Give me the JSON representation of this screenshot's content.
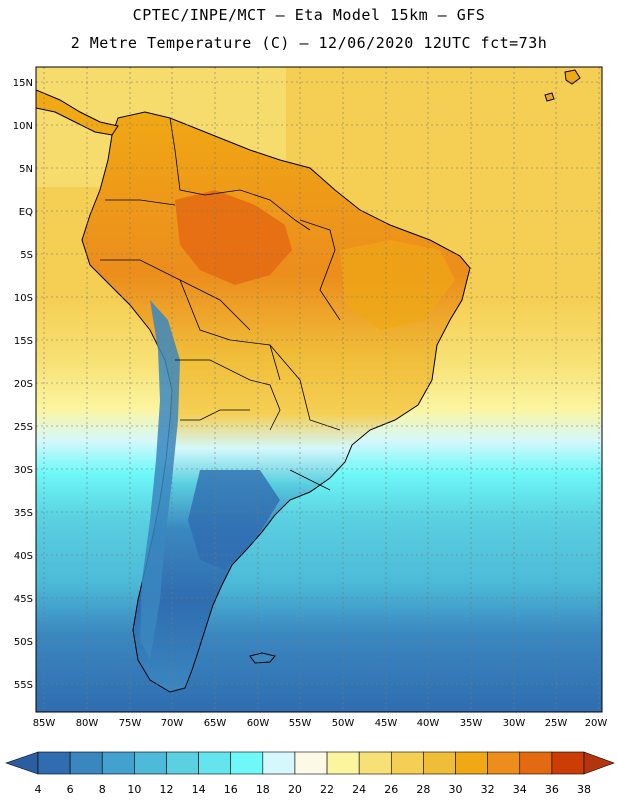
{
  "header": {
    "line1": "CPTEC/INPE/MCT –  Eta Model 15km – GFS",
    "line2": "2 Metre Temperature (C) – 12/06/2020 12UTC fct=73h"
  },
  "map": {
    "lat_labels": [
      "15N",
      "10N",
      "5N",
      "EQ",
      "5S",
      "10S",
      "15S",
      "20S",
      "25S",
      "30S",
      "35S",
      "40S",
      "45S",
      "50S",
      "55S"
    ],
    "lon_labels": [
      "85W",
      "80W",
      "75W",
      "70W",
      "65W",
      "60W",
      "55W",
      "50W",
      "45W",
      "40W",
      "35W",
      "30W",
      "25W",
      "20W"
    ],
    "lat_range": [
      15,
      -57
    ],
    "lon_range": [
      -85,
      -20
    ]
  },
  "colorbar": {
    "labels": [
      "4",
      "6",
      "8",
      "10",
      "12",
      "14",
      "16",
      "18",
      "20",
      "22",
      "24",
      "26",
      "28",
      "30",
      "32",
      "34",
      "36",
      "38"
    ],
    "colors": [
      "#2a5ea3",
      "#2f6db0",
      "#3a87c0",
      "#43a1cf",
      "#4cbad8",
      "#5ad0e0",
      "#64e4ec",
      "#6ef8f8",
      "#d4f8fc",
      "#fcfae6",
      "#fcf5a0",
      "#f7e176",
      "#f5cf54",
      "#f0bd38",
      "#f0a814",
      "#ec8d1c",
      "#e46a12",
      "#ca3e06",
      "#b4340c"
    ]
  }
}
